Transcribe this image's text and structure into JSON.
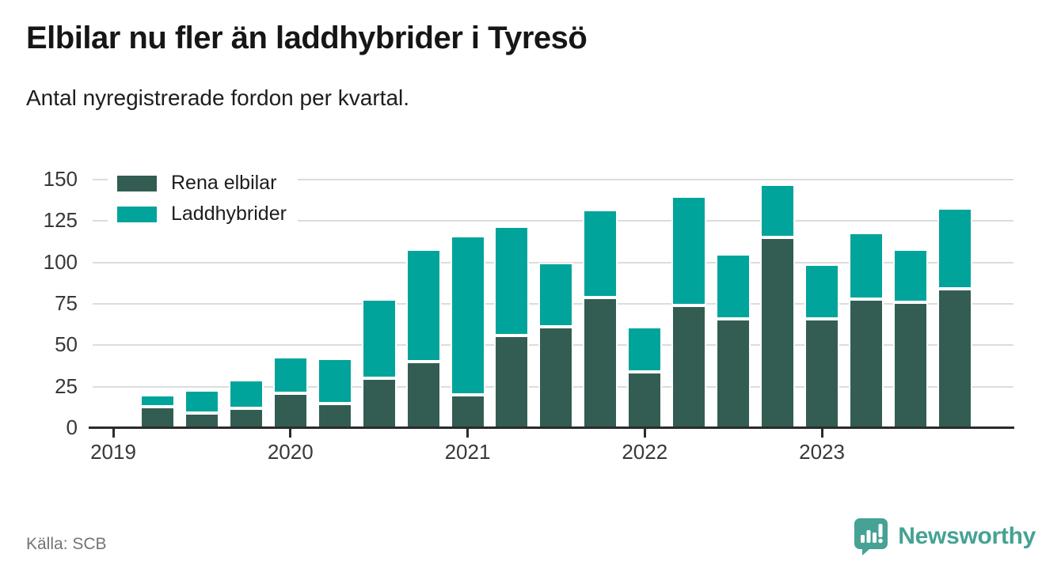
{
  "title": "Elbilar nu fler än laddhybrider i Tyresö",
  "subtitle": "Antal nyregistrerade fordon per kvartal.",
  "source": "Källa: SCB",
  "branding": {
    "logo_text": "Newsworthy",
    "brand_color": "#45a294"
  },
  "legend": [
    {
      "label": "Rena elbilar",
      "color": "#335d53"
    },
    {
      "label": "Laddhybrider",
      "color": "#00a49b"
    }
  ],
  "chart_data": {
    "type": "bar",
    "stacked": true,
    "title": "Elbilar nu fler än laddhybrider i Tyresö",
    "subtitle": "Antal nyregistrerade fordon per kvartal.",
    "xlabel": "",
    "ylabel": "",
    "categories": [
      "2019K2",
      "2019K3",
      "2019K4",
      "2020K1",
      "2020K2",
      "2020K3",
      "2020K4",
      "2021K1",
      "2021K2",
      "2021K3",
      "2021K4",
      "2022K1",
      "2022K2",
      "2022K3",
      "2022K4",
      "2023K1",
      "2023K2",
      "2023K3",
      "2023K4"
    ],
    "series": [
      {
        "name": "Rena elbilar",
        "color": "#335d53",
        "values": [
          13,
          9,
          12,
          21,
          15,
          30,
          40,
          20,
          56,
          61,
          79,
          34,
          74,
          66,
          115,
          66,
          78,
          76,
          84
        ]
      },
      {
        "name": "Laddhybrider",
        "color": "#00a49b",
        "values": [
          7,
          14,
          17,
          22,
          27,
          48,
          68,
          96,
          66,
          39,
          53,
          27,
          66,
          39,
          32,
          33,
          40,
          32,
          49
        ]
      }
    ],
    "x_ticks": [
      "2019",
      "2020",
      "2021",
      "2022",
      "2023"
    ],
    "y_ticks": [
      0,
      25,
      50,
      75,
      100,
      125,
      150
    ],
    "ylim": [
      0,
      157
    ],
    "grid": "horizontal",
    "legend_position": "top-left-inside"
  }
}
